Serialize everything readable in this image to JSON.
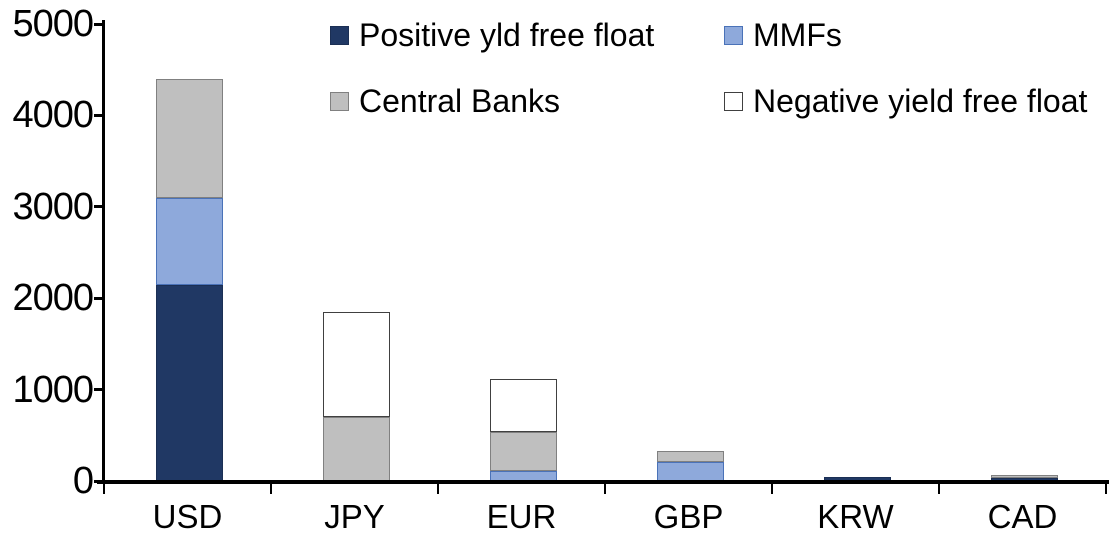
{
  "chart_data": {
    "type": "bar",
    "stacked": true,
    "title": "",
    "xlabel": "",
    "ylabel": "",
    "categories": [
      "USD",
      "JPY",
      "EUR",
      "GBP",
      "KRW",
      "CAD"
    ],
    "series": [
      {
        "name": "Positive yld free float",
        "color": "#203864",
        "border_color": "#1B2F54",
        "values": [
          2150,
          0,
          0,
          0,
          45,
          35
        ]
      },
      {
        "name": "MMFs",
        "color": "#8EA9DB",
        "border_color": "#4A72B8",
        "values": [
          950,
          0,
          110,
          210,
          0,
          0
        ]
      },
      {
        "name": "Central Banks",
        "color": "#BFBFBF",
        "border_color": "#808080",
        "values": [
          1300,
          700,
          430,
          120,
          0,
          30
        ]
      },
      {
        "name": "Negative yield free float",
        "color": "#FFFFFF",
        "border_color": "#404040",
        "values": [
          0,
          1150,
          580,
          0,
          0,
          0
        ]
      }
    ],
    "stack_totals": [
      4400,
      1850,
      1120,
      330,
      45,
      65
    ],
    "ylim": [
      0,
      5000
    ],
    "yticks": [
      0,
      1000,
      2000,
      3000,
      4000,
      5000
    ],
    "grid": false,
    "legend_position": "top",
    "legend_rows": [
      [
        "Positive yld free float",
        "MMFs"
      ],
      [
        "Central Banks",
        "Negative yield free float"
      ]
    ],
    "axis_color": "#000000",
    "text_color": "#000000",
    "background_color": "#FFFFFF"
  }
}
